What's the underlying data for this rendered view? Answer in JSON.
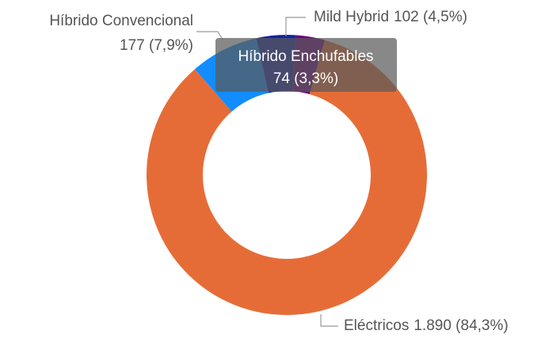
{
  "chart_data": {
    "type": "pie",
    "categories": [
      "Eléctricos",
      "Híbrido Convencional",
      "Mild Hybrid",
      "Híbrido Enchufables"
    ],
    "values": [
      1890,
      177,
      102,
      74
    ],
    "value_labels": [
      "1.890 (84,3%)",
      "177 (7,9%)",
      "102 (4,5%)",
      "74 (3,3%)"
    ],
    "colors": [
      "#e66c37",
      "#118dff",
      "#12239e",
      "#6b007b"
    ]
  }
}
